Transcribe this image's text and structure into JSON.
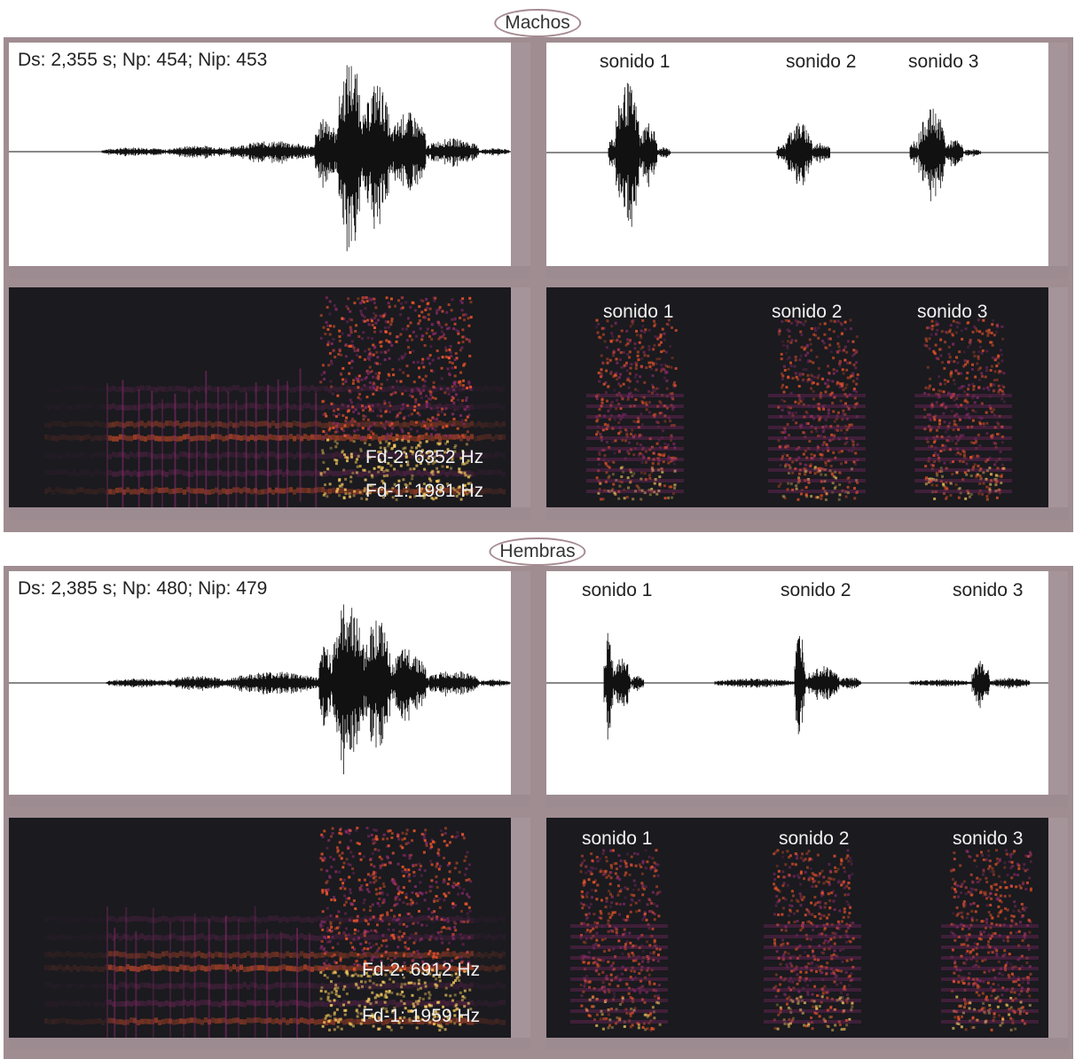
{
  "sections": {
    "male": "Machos",
    "female": "Hembras"
  },
  "male": {
    "wave_left_stats": "Ds: 2,355 s; Np: 454; Nip: 453",
    "wave_right_labels": [
      "sonido 1",
      "sonido 2",
      "sonido 3"
    ],
    "spec_right_labels": [
      "sonido 1",
      "sonido 2",
      "sonido 3"
    ],
    "fd2": "Fd-2: 6352 Hz",
    "fd1": "Fd-1: 1981 Hz"
  },
  "female": {
    "wave_left_stats": "Ds: 2,385 s; Np: 480; Nip: 479",
    "wave_right_labels": [
      "sonido 1",
      "sonido 2",
      "sonido 3"
    ],
    "spec_right_labels": [
      "sonido 1",
      "sonido 2",
      "sonido 3"
    ],
    "fd2": "Fd-2: 6912 Hz",
    "fd1": "Fd-1: 1959 Hz"
  },
  "colors": {
    "frame": "#9f8d92",
    "waveform": "#111111",
    "spectrogram_bg": "#1a1a1f",
    "spectrogram_mid": "#8a2a6a",
    "spectrogram_hot": "#ff5a2a",
    "spectrogram_peak": "#ffd060"
  }
}
